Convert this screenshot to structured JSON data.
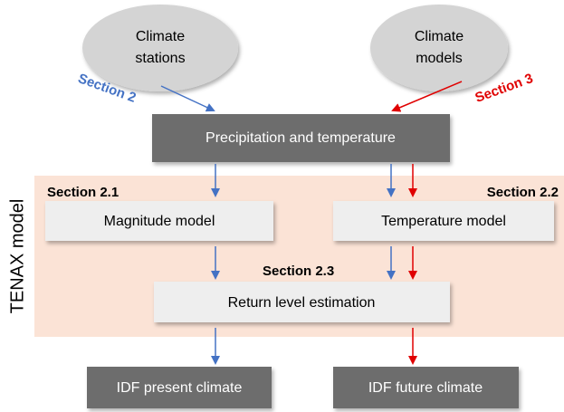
{
  "inputs": [
    {
      "lines": [
        "Climate",
        "stations"
      ]
    },
    {
      "lines": [
        "Climate",
        "models"
      ]
    }
  ],
  "input_sections": [
    "Section 2",
    "Section 3"
  ],
  "combined": "Precipitation and temperature",
  "region_label": "TENAX model",
  "model_sections": [
    "Section 2.1",
    "Section 2.2",
    "Section 2.3"
  ],
  "models": [
    "Magnitude model",
    "Temperature model"
  ],
  "estimation": "Return level estimation",
  "outputs": [
    "IDF present climate",
    "IDF future climate"
  ]
}
